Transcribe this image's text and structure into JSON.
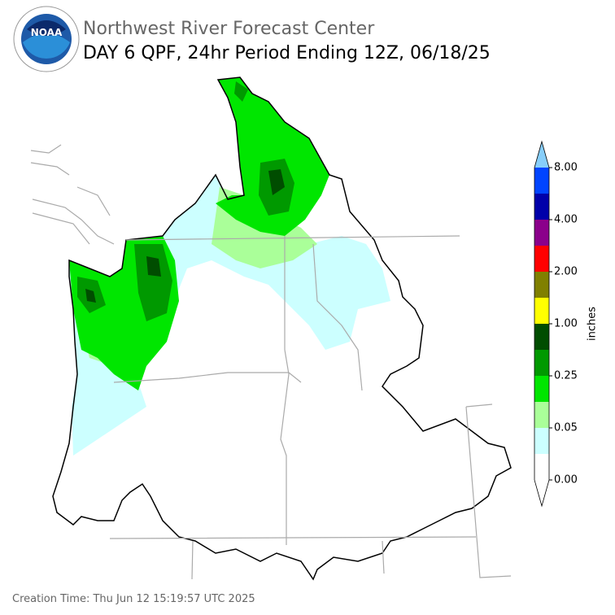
{
  "header": {
    "logo_text": "NOAA",
    "title": "Northwest River Forecast Center",
    "subtitle": "DAY 6 QPF, 24hr Period Ending 12Z, 06/18/25"
  },
  "colorbar": {
    "label": "inches",
    "ticks": [
      {
        "value": 0,
        "label": "0.00"
      },
      {
        "value": 0.05,
        "label": "0.05"
      },
      {
        "value": 0.25,
        "label": "0.25"
      },
      {
        "value": 1,
        "label": "1.00"
      },
      {
        "value": 2,
        "label": "2.00"
      },
      {
        "value": 4,
        "label": "4.00"
      },
      {
        "value": 8,
        "label": "8.00"
      }
    ],
    "colors": [
      "#ffffff",
      "#ccffff",
      "#aaff99",
      "#00e600",
      "#009900",
      "#004d00",
      "#ffff00",
      "#808000",
      "#ff0000",
      "#8b008b",
      "#0000aa",
      "#0044ff"
    ],
    "under_color": "#ffffff",
    "over_color": "#87cefa"
  },
  "footer": {
    "creation_time": "Creation Time: Thu Jun 12 15:19:57 UTC 2025"
  }
}
